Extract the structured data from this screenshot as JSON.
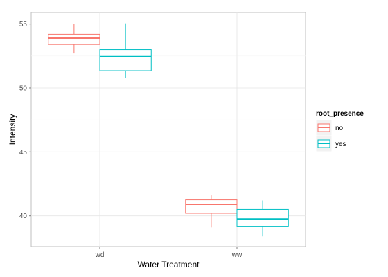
{
  "chart_data": {
    "type": "boxplot",
    "xlabel": "Water Treatment",
    "ylabel": "Intensity",
    "categories": [
      "wd",
      "ww"
    ],
    "y_ticks": [
      40,
      45,
      50,
      55
    ],
    "ylim": [
      37.6,
      55.9
    ],
    "grid": true,
    "legend": {
      "title": "root_presence",
      "placement": "right"
    },
    "series": [
      {
        "name": "no",
        "color": "#F8766D",
        "boxes": [
          {
            "category": "wd",
            "min": 52.7,
            "q1": 53.4,
            "median": 53.9,
            "q3": 54.2,
            "max": 55.0
          },
          {
            "category": "ww",
            "min": 39.1,
            "q1": 40.2,
            "median": 40.9,
            "q3": 41.25,
            "max": 41.6
          }
        ]
      },
      {
        "name": "yes",
        "color": "#00BFC4",
        "boxes": [
          {
            "category": "wd",
            "min": 50.8,
            "q1": 51.35,
            "median": 52.45,
            "q3": 53.0,
            "max": 55.05
          },
          {
            "category": "ww",
            "min": 38.4,
            "q1": 39.15,
            "median": 39.75,
            "q3": 40.5,
            "max": 41.2
          }
        ]
      }
    ]
  }
}
